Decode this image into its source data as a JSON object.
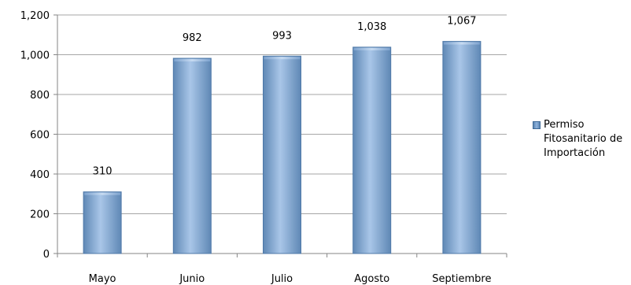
{
  "chart_data": {
    "type": "bar",
    "categories": [
      "Mayo",
      "Junio",
      "Julio",
      "Agosto",
      "Septiembre"
    ],
    "series": [
      {
        "name": "Permiso Fitosanitario de Importación",
        "values": [
          310,
          982,
          993,
          1038,
          1067
        ]
      }
    ],
    "data_labels": [
      "310",
      "982",
      "993",
      "1,038",
      "1,067"
    ],
    "y_ticks": [
      "0",
      "200",
      "400",
      "600",
      "800",
      "1,000",
      "1,200"
    ],
    "ylim": [
      0,
      1200
    ],
    "grid": true,
    "legend_position": "right",
    "title": "",
    "xlabel": "",
    "ylabel": "",
    "colors": {
      "bar": "#8fb3dd",
      "bar_edge": "#4f79a8",
      "grid": "#a6a6a6"
    }
  }
}
